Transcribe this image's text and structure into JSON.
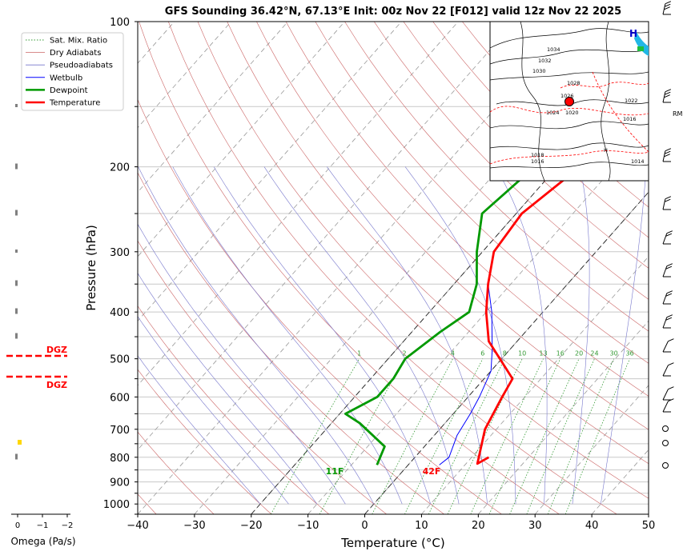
{
  "chart_data": {
    "type": "line",
    "title": "GFS Sounding 36.42°N, 67.13°E Init: 00z Nov 22 [F012] valid 12z Nov 22 2025",
    "xlabel": "Temperature (°C)",
    "ylabel": "Pressure (hPa)",
    "xlim": [
      -40,
      50
    ],
    "ylim": [
      1050,
      100
    ],
    "y_scale": "log",
    "x_ticks": [
      -40,
      -30,
      -20,
      -10,
      0,
      10,
      20,
      30,
      40,
      50
    ],
    "y_ticks": [
      100,
      200,
      300,
      400,
      500,
      600,
      700,
      800,
      900,
      1000
    ],
    "grid": true,
    "legend_position": "top-left",
    "legend": [
      "Sat. Mix. Ratio",
      "Dry Adiabats",
      "Pseudoadiabats",
      "Wetbulb",
      "Dewpoint",
      "Temperature"
    ],
    "colors": {
      "temperature": "#ff0000",
      "dewpoint": "#009900",
      "wetbulb": "#0000ff",
      "dry_adiabat": "#cc6666",
      "pseudoadiabat": "#7777cc",
      "mixing_ratio": "#339933",
      "dgz": "#ff0000",
      "omega": "#808080",
      "omega_highlight": "#ffd700"
    },
    "series": [
      {
        "name": "Temperature",
        "points": [
          [
            13,
            800
          ],
          [
            12,
            825
          ],
          [
            8,
            700
          ],
          [
            6,
            600
          ],
          [
            5,
            550
          ],
          [
            -5,
            460
          ],
          [
            -10,
            400
          ],
          [
            -14,
            350
          ],
          [
            -18,
            300
          ],
          [
            -19,
            250
          ],
          [
            -16,
            200
          ],
          [
            -13,
            150
          ],
          [
            -8,
            120
          ],
          [
            0,
            100
          ]
        ]
      },
      {
        "name": "Dewpoint",
        "points": [
          [
            -5.5,
            830
          ],
          [
            -7,
            760
          ],
          [
            -15,
            680
          ],
          [
            -19,
            650
          ],
          [
            -16,
            600
          ],
          [
            -16,
            550
          ],
          [
            -17,
            500
          ],
          [
            -15,
            440
          ],
          [
            -13,
            400
          ],
          [
            -16,
            350
          ],
          [
            -21,
            300
          ],
          [
            -26,
            250
          ],
          [
            -24,
            200
          ],
          [
            -26.5,
            150
          ],
          [
            -21,
            100
          ]
        ]
      },
      {
        "name": "Wetbulb",
        "points": [
          [
            5.5,
            830
          ],
          [
            6,
            800
          ],
          [
            4,
            720
          ],
          [
            3,
            650
          ],
          [
            2,
            600
          ],
          [
            0,
            530
          ],
          [
            -3,
            480
          ],
          [
            -9,
            400
          ],
          [
            -14,
            350
          ],
          [
            -18,
            300
          ],
          [
            -19,
            250
          ]
        ]
      }
    ],
    "surface_labels": {
      "dewpoint": "11F",
      "temperature": "42F"
    },
    "mixing_ratio_labels": [
      "1",
      "2",
      "4",
      "6",
      "8",
      "10",
      "13",
      "16",
      "20",
      "24",
      "30",
      "36"
    ],
    "dgz_label": "DGZ",
    "omega_axis": {
      "label": "Omega (Pa/s)",
      "ticks": [
        "0",
        "−1",
        "−2"
      ]
    },
    "inset_map_labels": [
      "1034",
      "1032",
      "1030",
      "1028",
      "1026",
      "1024",
      "1022",
      "1020",
      "1018",
      "1016",
      "1014",
      "H",
      "RM"
    ]
  }
}
